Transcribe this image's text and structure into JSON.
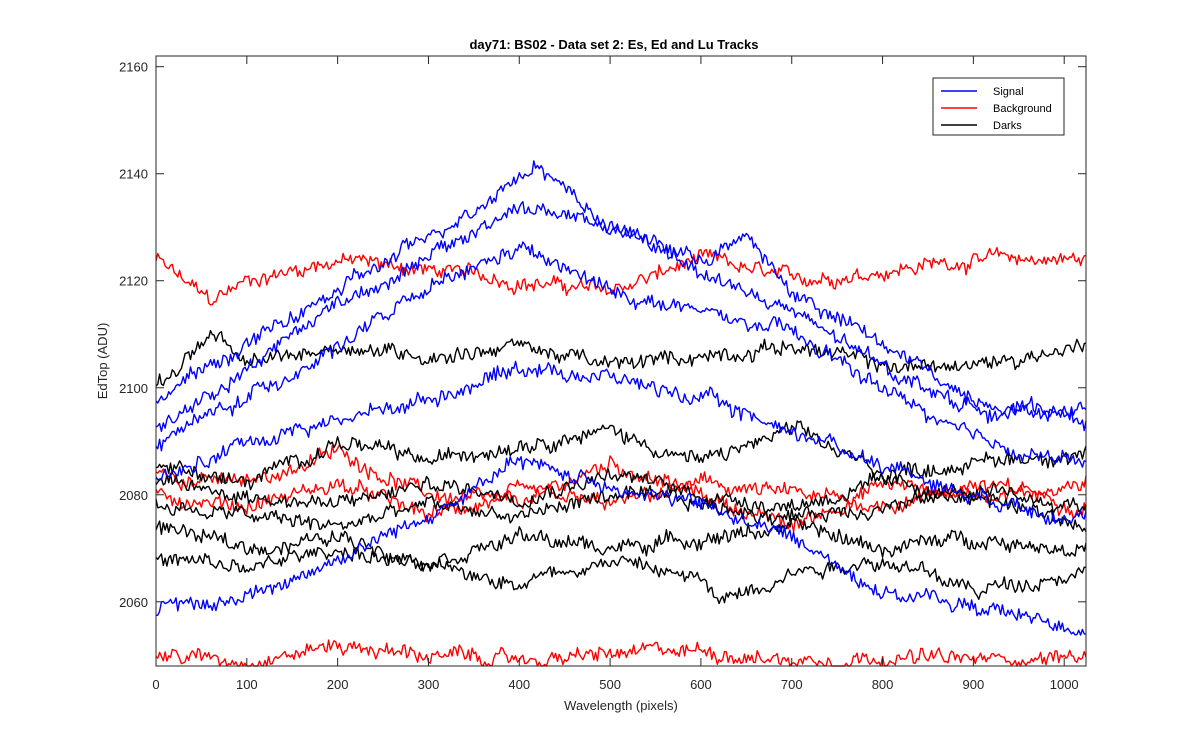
{
  "chart_data": {
    "type": "line",
    "title": "day71: BS02 - Data set 2: Es, Ed and Lu Tracks",
    "xlabel": "Wavelength (pixels)",
    "ylabel": "EdTop (ADU)",
    "xlim": [
      0,
      1024
    ],
    "ylim": [
      2048,
      2162
    ],
    "xticks": [
      0,
      100,
      200,
      300,
      400,
      500,
      600,
      700,
      800,
      900,
      1000
    ],
    "yticks": [
      2060,
      2080,
      2100,
      2120,
      2140,
      2160
    ],
    "grid": false,
    "legend": {
      "placement": "top-right",
      "entries": [
        {
          "name": "Signal",
          "color": "#0000ff"
        },
        {
          "name": "Background",
          "color": "#ff0000"
        },
        {
          "name": "Darks",
          "color": "#000000"
        }
      ]
    },
    "series": [
      {
        "name": "Signal",
        "color": "#0000ff",
        "x": [
          0,
          100,
          200,
          300,
          400,
          420,
          500,
          600,
          650,
          700,
          800,
          900,
          1024
        ],
        "y": [
          2098,
          2108,
          2118,
          2128,
          2140,
          2142,
          2130,
          2124,
          2128,
          2118,
          2108,
          2098,
          2094
        ]
      },
      {
        "name": "Signal",
        "color": "#0000ff",
        "x": [
          0,
          100,
          200,
          300,
          400,
          500,
          600,
          700,
          800,
          900,
          1024
        ],
        "y": [
          2092,
          2104,
          2116,
          2124,
          2134,
          2130,
          2122,
          2114,
          2104,
          2096,
          2096
        ]
      },
      {
        "name": "Signal",
        "color": "#0000ff",
        "x": [
          0,
          100,
          200,
          300,
          400,
          500,
          600,
          700,
          800,
          900,
          1024
        ],
        "y": [
          2090,
          2098,
          2108,
          2118,
          2126,
          2118,
          2114,
          2110,
          2100,
          2090,
          2086
        ]
      },
      {
        "name": "Signal",
        "color": "#0000ff",
        "x": [
          0,
          100,
          200,
          300,
          400,
          500,
          600,
          700,
          800,
          900,
          1024
        ],
        "y": [
          2082,
          2090,
          2094,
          2098,
          2104,
          2102,
          2098,
          2092,
          2086,
          2080,
          2076
        ]
      },
      {
        "name": "Signal",
        "color": "#0000ff",
        "x": [
          0,
          100,
          200,
          300,
          400,
          500,
          600,
          700,
          800,
          900,
          1024
        ],
        "y": [
          2058,
          2061,
          2068,
          2076,
          2086,
          2082,
          2078,
          2072,
          2062,
          2059,
          2055
        ]
      },
      {
        "name": "Background",
        "color": "#ff0000",
        "x": [
          0,
          60,
          100,
          200,
          300,
          400,
          500,
          600,
          700,
          800,
          900,
          1024
        ],
        "y": [
          2124,
          2116,
          2120,
          2124,
          2122,
          2120,
          2118,
          2124,
          2120,
          2122,
          2124,
          2124
        ]
      },
      {
        "name": "Background",
        "color": "#ff0000",
        "x": [
          0,
          100,
          200,
          300,
          400,
          500,
          600,
          700,
          800,
          900,
          1024
        ],
        "y": [
          2084,
          2082,
          2088,
          2080,
          2078,
          2086,
          2080,
          2074,
          2082,
          2080,
          2082
        ]
      },
      {
        "name": "Background",
        "color": "#ff0000",
        "x": [
          0,
          100,
          200,
          300,
          400,
          500,
          600,
          700,
          800,
          900,
          1024
        ],
        "y": [
          2080,
          2078,
          2082,
          2076,
          2080,
          2078,
          2082,
          2080,
          2078,
          2082,
          2078
        ]
      },
      {
        "name": "Background",
        "color": "#ff0000",
        "x": [
          0,
          100,
          200,
          300,
          400,
          500,
          600,
          700,
          800,
          900,
          1024
        ],
        "y": [
          2050,
          2049,
          2052,
          2050,
          2049,
          2050,
          2051,
          2049,
          2050,
          2049,
          2050
        ]
      },
      {
        "name": "Darks",
        "color": "#000000",
        "x": [
          0,
          60,
          100,
          200,
          300,
          400,
          500,
          600,
          700,
          800,
          900,
          1024
        ],
        "y": [
          2100,
          2110,
          2104,
          2108,
          2106,
          2108,
          2104,
          2106,
          2108,
          2104,
          2104,
          2108
        ]
      },
      {
        "name": "Darks",
        "color": "#000000",
        "x": [
          0,
          100,
          200,
          300,
          400,
          500,
          600,
          700,
          800,
          900,
          1024
        ],
        "y": [
          2086,
          2082,
          2090,
          2086,
          2090,
          2092,
          2086,
          2092,
          2084,
          2086,
          2088
        ]
      },
      {
        "name": "Darks",
        "color": "#000000",
        "x": [
          0,
          100,
          200,
          300,
          400,
          500,
          600,
          700,
          800,
          900,
          1024
        ],
        "y": [
          2082,
          2080,
          2078,
          2082,
          2080,
          2084,
          2080,
          2078,
          2082,
          2080,
          2078
        ]
      },
      {
        "name": "Darks",
        "color": "#000000",
        "x": [
          0,
          100,
          200,
          300,
          400,
          500,
          600,
          700,
          800,
          900,
          1024
        ],
        "y": [
          2078,
          2076,
          2074,
          2078,
          2076,
          2080,
          2078,
          2076,
          2078,
          2080,
          2074
        ]
      },
      {
        "name": "Darks",
        "color": "#000000",
        "x": [
          0,
          100,
          200,
          300,
          400,
          500,
          600,
          700,
          800,
          900,
          1024
        ],
        "y": [
          2074,
          2070,
          2072,
          2068,
          2072,
          2070,
          2072,
          2074,
          2070,
          2072,
          2070
        ]
      },
      {
        "name": "Darks",
        "color": "#000000",
        "x": [
          0,
          100,
          200,
          300,
          400,
          500,
          600,
          620,
          700,
          800,
          900,
          1024
        ],
        "y": [
          2068,
          2066,
          2070,
          2066,
          2064,
          2068,
          2064,
          2060,
          2066,
          2068,
          2062,
          2066
        ]
      }
    ]
  }
}
